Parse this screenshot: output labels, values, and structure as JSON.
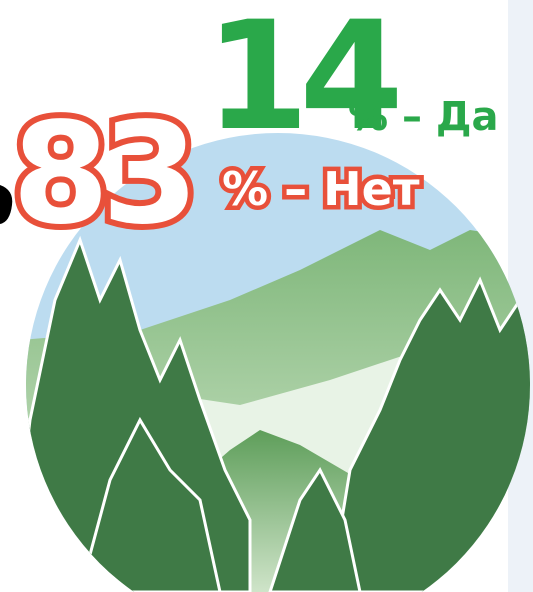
{
  "stats": [
    {
      "value": 14,
      "label": "% – Да"
    },
    {
      "value": 83,
      "label": "% – Нет"
    }
  ]
}
